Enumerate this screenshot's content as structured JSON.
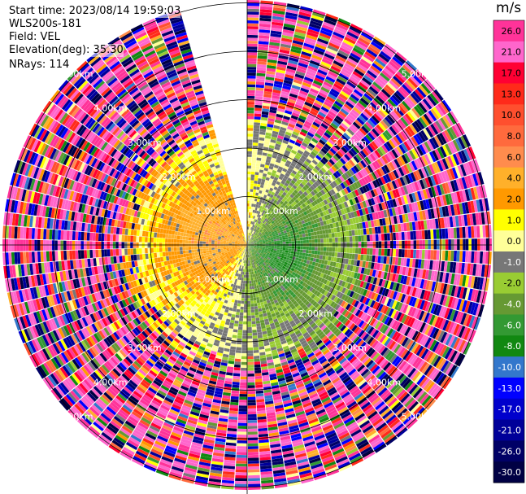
{
  "header": {
    "start_time": "Start time: 2023/08/14 19:59:03",
    "instrument": "WLS200s-181",
    "field": "Field: VEL",
    "elevation": "Elevation(deg): 35.30",
    "nrays": "NRays: 114"
  },
  "chart_data": {
    "type": "heatmap",
    "subtype": "polar-ppi",
    "field": "VEL",
    "nrays": 114,
    "elevation_deg": 35.3,
    "range_rings_km": [
      1.0,
      2.0,
      3.0,
      4.0,
      5.0
    ],
    "range_ring_labels": [
      "1.00km",
      "2.00km",
      "3.00km",
      "4.00km",
      "5.00km"
    ],
    "max_range_km": 5.0,
    "azimuth_gap_deg": [
      -15,
      0
    ],
    "colorbar": {
      "unit": "m/s",
      "ticks": [
        "26.0",
        "21.0",
        "17.0",
        "13.0",
        "10.0",
        "8.0",
        "6.0",
        "4.0",
        "2.0",
        "1.0",
        "0.0",
        "-1.0",
        "-2.0",
        "-4.0",
        "-6.0",
        "-8.0",
        "-10.0",
        "-13.0",
        "-17.0",
        "-21.0",
        "-26.0",
        "-30.0"
      ],
      "bins": [
        {
          "lo": 26,
          "hi": 30,
          "color": "#ff3399"
        },
        {
          "lo": 21,
          "hi": 26,
          "color": "#ff66cc"
        },
        {
          "lo": 17,
          "hi": 21,
          "color": "#ff0033"
        },
        {
          "lo": 13,
          "hi": 17,
          "color": "#ff2a1a"
        },
        {
          "lo": 10,
          "hi": 13,
          "color": "#ff4f2e"
        },
        {
          "lo": 8,
          "hi": 10,
          "color": "#ff6a3d"
        },
        {
          "lo": 6,
          "hi": 8,
          "color": "#ff8c4d"
        },
        {
          "lo": 4,
          "hi": 6,
          "color": "#ffb02a"
        },
        {
          "lo": 2,
          "hi": 4,
          "color": "#ff9900"
        },
        {
          "lo": 1,
          "hi": 2,
          "color": "#ffff00"
        },
        {
          "lo": 0,
          "hi": 1,
          "color": "#ffff99"
        },
        {
          "lo": -1,
          "hi": 0,
          "color": "#777777"
        },
        {
          "lo": -2,
          "hi": -1,
          "color": "#99cc33"
        },
        {
          "lo": -4,
          "hi": -2,
          "color": "#669933"
        },
        {
          "lo": -6,
          "hi": -4,
          "color": "#339933"
        },
        {
          "lo": -8,
          "hi": -6,
          "color": "#118811"
        },
        {
          "lo": -10,
          "hi": -8,
          "color": "#3377cc"
        },
        {
          "lo": -13,
          "hi": -10,
          "color": "#0000ff"
        },
        {
          "lo": -17,
          "hi": -13,
          "color": "#0000cc"
        },
        {
          "lo": -21,
          "hi": -17,
          "color": "#000099"
        },
        {
          "lo": -26,
          "hi": -21,
          "color": "#000066"
        },
        {
          "lo": -30,
          "hi": -26,
          "color": "#000044"
        }
      ]
    },
    "velocity_pattern": {
      "positive_core_azimuth_deg": 285,
      "negative_core_azimuth_deg": 120,
      "coherent_range_km": 2.3,
      "noise_beyond_km": 2.6
    }
  }
}
